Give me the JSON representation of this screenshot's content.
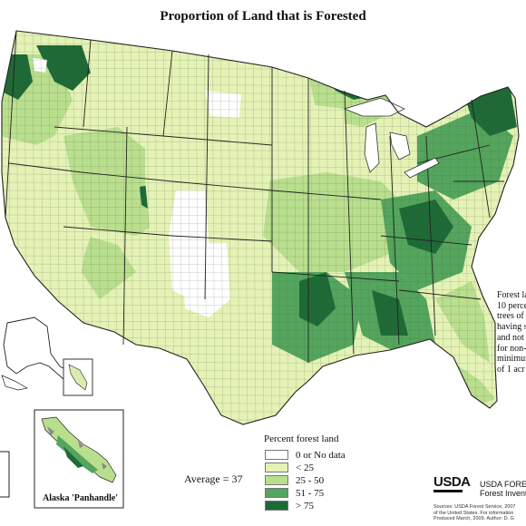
{
  "title": "Proportion of Land that is Forested",
  "legend": {
    "title": "Percent forest land",
    "classes": [
      {
        "label": "0 or No data",
        "color": "#ffffff"
      },
      {
        "label": "< 25",
        "color": "#e4f2b6"
      },
      {
        "label": "25 - 50",
        "color": "#b9df8e"
      },
      {
        "label": "51 - 75",
        "color": "#54a55d"
      },
      {
        "label": "> 75",
        "color": "#1e6a37"
      }
    ]
  },
  "average": "Average = 37",
  "note_lines": [
    "Forest la",
    "10 perce",
    "trees of",
    "having s",
    "and not",
    "for non-",
    "minimun",
    "of 1 acr"
  ],
  "inset_label": "Alaska 'Panhandle'",
  "logo": "USDA",
  "agency_lines": [
    "USDA FORES",
    "Forest Invento"
  ],
  "source_lines": [
    "Sources: USDA Forest Service, 2007",
    "of the United States. For information",
    "Produced March, 2009. Author: D. G"
  ],
  "colors": {
    "border": "#333333",
    "water": "#ffffff"
  }
}
